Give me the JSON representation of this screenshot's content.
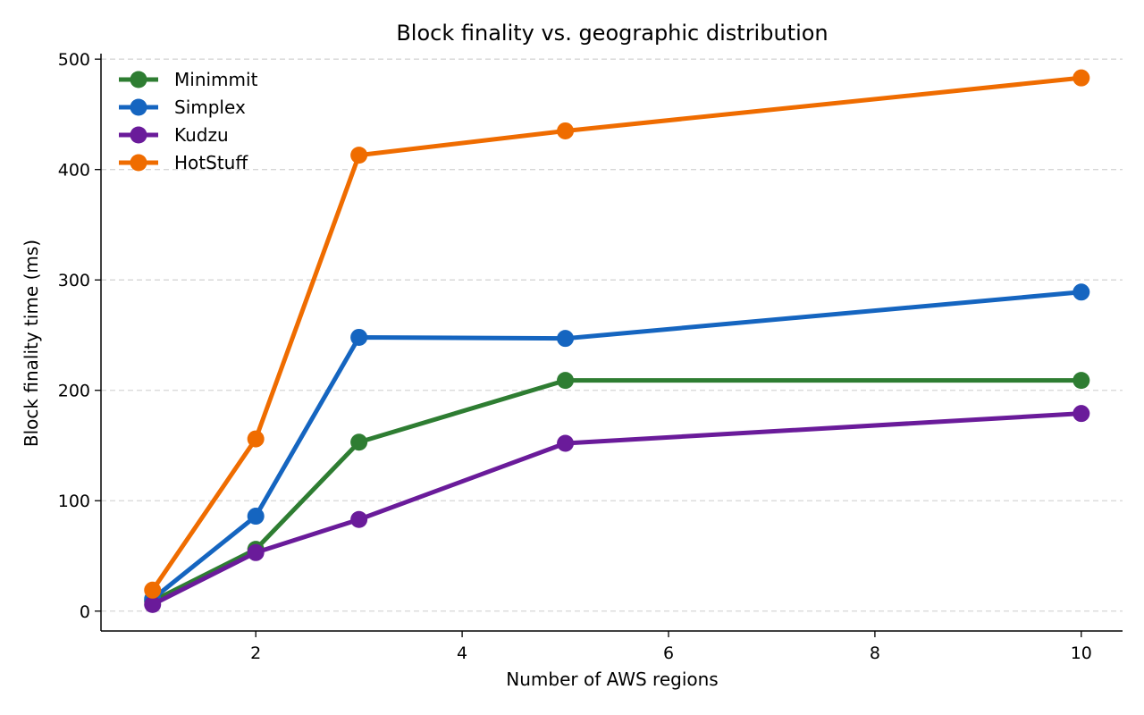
{
  "chart_data": {
    "type": "line",
    "title": "Block finality vs. geographic distribution",
    "xlabel": "Number of AWS regions",
    "ylabel": "Block finality time (ms)",
    "xlim": [
      0.5,
      10.4
    ],
    "ylim": [
      -18,
      505
    ],
    "xticks": [
      2,
      4,
      6,
      8,
      10
    ],
    "yticks": [
      0,
      100,
      200,
      300,
      400,
      500
    ],
    "grid": "y-dashed",
    "legend_position": "top-left",
    "x": [
      1,
      2,
      3,
      5,
      10
    ],
    "series": [
      {
        "name": "Minimmit",
        "color": "#2e7d32",
        "values": [
          9,
          56,
          153,
          209,
          209
        ]
      },
      {
        "name": "Simplex",
        "color": "#1565c0",
        "values": [
          11,
          86,
          248,
          247,
          289
        ]
      },
      {
        "name": "Kudzu",
        "color": "#6a1b9a",
        "values": [
          6,
          53,
          83,
          152,
          179
        ]
      },
      {
        "name": "HotStuff",
        "color": "#ef6c00",
        "values": [
          19,
          156,
          413,
          435,
          483
        ]
      }
    ]
  }
}
